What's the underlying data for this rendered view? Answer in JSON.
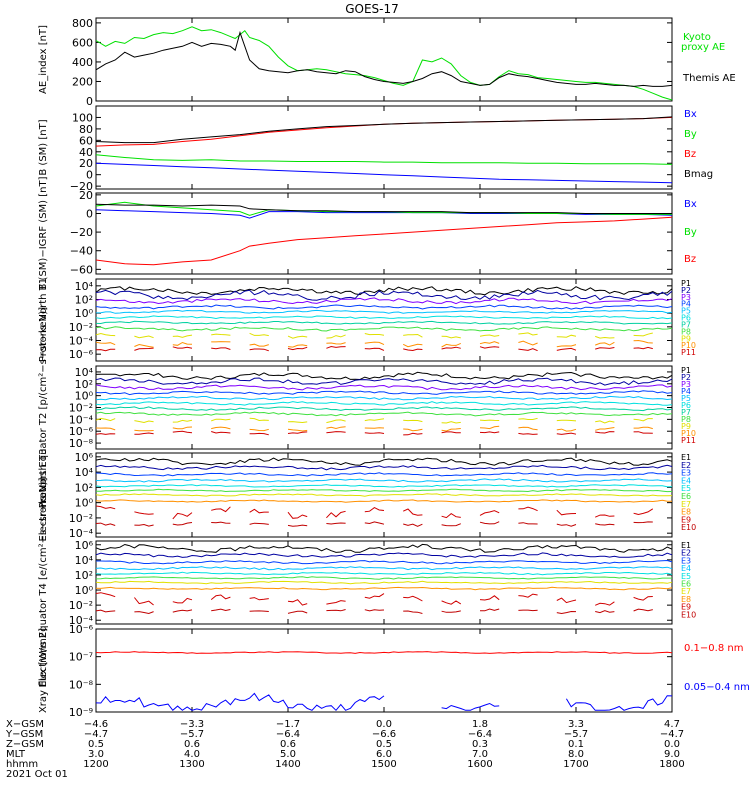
{
  "title": "GOES-17",
  "colors": {
    "black": "#000000",
    "green": "#00e000",
    "blue": "#0000ff",
    "red": "#ff0000",
    "navy": "#0000a0",
    "purple": "#8000ff",
    "dblue": "#0040ff",
    "cyan": "#00c0ff",
    "aqua": "#00e0e0",
    "teal": "#00d0a0",
    "lgreen": "#40e040",
    "yellow": "#e0e000",
    "olive": "#c0c000",
    "orange": "#ff9000",
    "dred": "#d00000",
    "maroon": "#c00000"
  },
  "chart_data": [
    {
      "type": "line",
      "id": "ae",
      "ylabel": "AE_index [nT]",
      "ylim": [
        0,
        850
      ],
      "yticks": [
        {
          "v": 0,
          "t": "0"
        },
        {
          "v": 200,
          "t": "200"
        },
        {
          "v": 400,
          "t": "400"
        },
        {
          "v": 600,
          "t": "600"
        },
        {
          "v": 800,
          "t": "800"
        }
      ],
      "x": [
        1200,
        1210,
        1220,
        1230,
        1240,
        1250,
        1260,
        1270,
        1280,
        1290,
        1300,
        1310,
        1320,
        1330,
        1340,
        1345,
        1350,
        1355,
        1360,
        1370,
        1380,
        1390,
        1400,
        1410,
        1420,
        1430,
        1440,
        1450,
        1460,
        1470,
        1480,
        1490,
        1500,
        1510,
        1520,
        1530,
        1540,
        1550,
        1560,
        1570,
        1580,
        1590,
        1600,
        1610,
        1620,
        1630,
        1640,
        1650,
        1660,
        1670,
        1680,
        1690,
        1700,
        1710,
        1720,
        1730,
        1740,
        1750,
        1760,
        1770,
        1780,
        1790,
        1800
      ],
      "series": [
        {
          "name": "Kyoto proxy AE",
          "color": "green",
          "values": [
            620,
            560,
            610,
            590,
            650,
            640,
            680,
            700,
            690,
            720,
            760,
            720,
            730,
            700,
            660,
            640,
            680,
            720,
            650,
            620,
            560,
            450,
            360,
            310,
            320,
            330,
            320,
            300,
            280,
            270,
            260,
            240,
            210,
            180,
            160,
            200,
            420,
            400,
            440,
            380,
            260,
            190,
            160,
            170,
            250,
            310,
            280,
            270,
            240,
            230,
            220,
            210,
            200,
            190,
            190,
            180,
            170,
            160,
            150,
            120,
            80,
            40,
            10
          ]
        },
        {
          "name": "Themis AE",
          "color": "black",
          "values": [
            320,
            380,
            420,
            500,
            450,
            470,
            490,
            520,
            540,
            560,
            600,
            560,
            590,
            580,
            560,
            520,
            700,
            560,
            420,
            330,
            310,
            300,
            290,
            310,
            320,
            300,
            290,
            280,
            310,
            300,
            250,
            220,
            200,
            190,
            180,
            200,
            230,
            280,
            300,
            260,
            200,
            180,
            160,
            170,
            240,
            280,
            260,
            250,
            230,
            210,
            190,
            180,
            170,
            170,
            180,
            170,
            160,
            160,
            150,
            160,
            150,
            150,
            160
          ]
        }
      ],
      "legend": [
        {
          "text": "Kyoto",
          "color": "green"
        },
        {
          "text": "proxy AE",
          "color": "green"
        },
        {
          "text": "Themis AE",
          "color": "black"
        }
      ]
    },
    {
      "type": "line",
      "id": "bsm",
      "ylabel": "B (SM) [nT]",
      "ylim": [
        -25,
        120
      ],
      "yticks": [
        {
          "v": -20,
          "t": "−20"
        },
        {
          "v": 0,
          "t": "0"
        },
        {
          "v": 20,
          "t": "20"
        },
        {
          "v": 40,
          "t": "40"
        },
        {
          "v": 60,
          "t": "60"
        },
        {
          "v": 80,
          "t": "80"
        },
        {
          "v": 100,
          "t": "100"
        }
      ],
      "x": [
        1200,
        1230,
        1260,
        1290,
        1320,
        1350,
        1380,
        1410,
        1440,
        1470,
        1500,
        1530,
        1560,
        1590,
        1620,
        1650,
        1680,
        1710,
        1740,
        1770,
        1800
      ],
      "series": [
        {
          "name": "Bx",
          "color": "blue",
          "values": [
            20,
            18,
            16,
            14,
            12,
            10,
            8,
            6,
            4,
            2,
            0,
            -2,
            -4,
            -6,
            -8,
            -9,
            -10,
            -11,
            -12,
            -13,
            -14
          ]
        },
        {
          "name": "By",
          "color": "green",
          "values": [
            35,
            30,
            26,
            25,
            26,
            24,
            24,
            23,
            23,
            23,
            22,
            22,
            21,
            21,
            21,
            20,
            20,
            19,
            19,
            19,
            18
          ]
        },
        {
          "name": "Bz",
          "color": "red",
          "values": [
            50,
            52,
            53,
            58,
            62,
            68,
            74,
            78,
            82,
            85,
            88,
            90,
            91,
            92,
            93,
            94,
            95,
            96,
            97,
            98,
            100
          ]
        },
        {
          "name": "Bmag",
          "color": "black",
          "values": [
            58,
            56,
            56,
            62,
            66,
            70,
            76,
            80,
            84,
            86,
            88,
            90,
            91,
            92,
            93,
            94,
            95,
            96,
            97,
            98,
            101
          ]
        }
      ],
      "legend": [
        {
          "text": "Bx",
          "color": "blue"
        },
        {
          "text": "By",
          "color": "green"
        },
        {
          "text": "Bz",
          "color": "red"
        },
        {
          "text": "Bmag",
          "color": "black"
        }
      ]
    },
    {
      "type": "line",
      "id": "bigrf",
      "ylabel": "B (SM)−IGRF (SM) [nT]",
      "ylim": [
        -65,
        22
      ],
      "yticks": [
        {
          "v": -60,
          "t": "−60"
        },
        {
          "v": -40,
          "t": "−40"
        },
        {
          "v": -20,
          "t": "−20"
        },
        {
          "v": 0,
          "t": "0"
        },
        {
          "v": 20,
          "t": "20"
        }
      ],
      "x": [
        1200,
        1230,
        1260,
        1290,
        1320,
        1350,
        1360,
        1380,
        1410,
        1440,
        1470,
        1500,
        1530,
        1560,
        1590,
        1620,
        1650,
        1680,
        1710,
        1740,
        1770,
        1800
      ],
      "series": [
        {
          "name": "Bx",
          "color": "blue",
          "values": [
            4,
            3,
            2,
            1,
            0,
            -2,
            -5,
            2,
            2,
            1,
            1,
            1,
            1,
            1,
            0,
            0,
            0,
            0,
            -1,
            -1,
            -1,
            -2
          ]
        },
        {
          "name": "By",
          "color": "green",
          "values": [
            8,
            12,
            8,
            6,
            4,
            2,
            -2,
            4,
            3,
            2,
            2,
            2,
            1,
            1,
            1,
            1,
            0,
            0,
            0,
            -1,
            -1,
            -1
          ]
        },
        {
          "name": "Bz",
          "color": "red",
          "values": [
            -50,
            -54,
            -55,
            -52,
            -50,
            -40,
            -35,
            -32,
            -28,
            -26,
            -24,
            -22,
            -20,
            -18,
            -16,
            -14,
            -12,
            -10,
            -9,
            -8,
            -6,
            -4
          ]
        },
        {
          "name": "",
          "color": "black",
          "values": [
            10,
            9,
            9,
            8,
            9,
            8,
            5,
            4,
            3,
            3,
            2,
            2,
            2,
            2,
            1,
            1,
            1,
            1,
            0,
            0,
            0,
            0
          ]
        }
      ],
      "legend": [
        {
          "text": "Bx",
          "color": "blue"
        },
        {
          "text": "By",
          "color": "green"
        },
        {
          "text": "Bz",
          "color": "red"
        }
      ]
    },
    {
      "type": "line",
      "id": "protn",
      "ylabel": "Protons North T1",
      "yscale": "log",
      "ylim": [
        -7,
        5
      ],
      "yticks": [
        {
          "v": 4,
          "t": "10⁴"
        },
        {
          "v": 2,
          "t": "10²"
        },
        {
          "v": 0,
          "t": "10⁰"
        },
        {
          "v": -2,
          "t": "10⁻²"
        },
        {
          "v": -4,
          "t": "10⁻⁴"
        },
        {
          "v": -6,
          "t": "10⁻⁶"
        }
      ],
      "series": [
        {
          "name": "P1",
          "color": "black",
          "level": 3.3,
          "amp": 0.6
        },
        {
          "name": "P2",
          "color": "navy",
          "level": 2.6,
          "amp": 0.7
        },
        {
          "name": "P3",
          "color": "purple",
          "level": 1.8,
          "amp": 0.4
        },
        {
          "name": "P4",
          "color": "dblue",
          "level": 0.9,
          "amp": 0.3
        },
        {
          "name": "P5",
          "color": "cyan",
          "level": 0.2,
          "amp": 0.2
        },
        {
          "name": "P6",
          "color": "aqua",
          "level": -0.6,
          "amp": 0.2
        },
        {
          "name": "P7",
          "color": "teal",
          "level": -1.4,
          "amp": 0.2
        },
        {
          "name": "P8",
          "color": "lgreen",
          "level": -2.3,
          "amp": 0.3
        },
        {
          "name": "P9",
          "color": "yellow",
          "level": -3.3,
          "amp": 0.4,
          "dashed": true
        },
        {
          "name": "P10",
          "color": "orange",
          "level": -4.5,
          "amp": 0.5,
          "dashed": true
        },
        {
          "name": "P11",
          "color": "dred",
          "level": -5.2,
          "amp": 0.3,
          "dashed": true
        }
      ]
    },
    {
      "type": "line",
      "id": "prote",
      "ylabel": "Protons Equator T2 [p/(cm²−s−sr−keV)]",
      "yscale": "log",
      "ylim": [
        -9,
        5
      ],
      "yticks": [
        {
          "v": 4,
          "t": "10⁴"
        },
        {
          "v": 2,
          "t": "10²"
        },
        {
          "v": 0,
          "t": "10⁰"
        },
        {
          "v": -2,
          "t": "10⁻²"
        },
        {
          "v": -4,
          "t": "10⁻⁴"
        },
        {
          "v": -6,
          "t": "10⁻⁶"
        },
        {
          "v": -8,
          "t": "10⁻⁸"
        }
      ],
      "series": [
        {
          "name": "P1",
          "color": "black",
          "level": 3.3,
          "amp": 0.6
        },
        {
          "name": "P2",
          "color": "navy",
          "level": 2.4,
          "amp": 0.6
        },
        {
          "name": "P3",
          "color": "purple",
          "level": 1.4,
          "amp": 0.4
        },
        {
          "name": "P4",
          "color": "dblue",
          "level": 0.5,
          "amp": 0.3
        },
        {
          "name": "P5",
          "color": "cyan",
          "level": -0.4,
          "amp": 0.3
        },
        {
          "name": "P6",
          "color": "aqua",
          "level": -1.3,
          "amp": 0.3
        },
        {
          "name": "P7",
          "color": "teal",
          "level": -2.2,
          "amp": 0.3
        },
        {
          "name": "P8",
          "color": "lgreen",
          "level": -3.1,
          "amp": 0.3
        },
        {
          "name": "P9",
          "color": "yellow",
          "level": -4.2,
          "amp": 0.4,
          "dashed": true
        },
        {
          "name": "P10",
          "color": "orange",
          "level": -5.6,
          "amp": 0.4,
          "dashed": true
        },
        {
          "name": "P11",
          "color": "dred",
          "level": -6.3,
          "amp": 0.3,
          "dashed": true
        }
      ]
    },
    {
      "type": "line",
      "id": "elecn",
      "ylabel": "Electrons North T3",
      "yscale": "log",
      "ylim": [
        -4.5,
        6.5
      ],
      "yticks": [
        {
          "v": 6,
          "t": "10⁶"
        },
        {
          "v": 4,
          "t": "10⁴"
        },
        {
          "v": 2,
          "t": "10²"
        },
        {
          "v": 0,
          "t": "10⁰"
        },
        {
          "v": -2,
          "t": "10⁻²"
        },
        {
          "v": -4,
          "t": "10⁻⁴"
        }
      ],
      "series": [
        {
          "name": "E1",
          "color": "black",
          "level": 5.4,
          "amp": 0.5
        },
        {
          "name": "E2",
          "color": "navy",
          "level": 4.6,
          "amp": 0.3
        },
        {
          "name": "E3",
          "color": "dblue",
          "level": 3.7,
          "amp": 0.2
        },
        {
          "name": "E4",
          "color": "cyan",
          "level": 2.9,
          "amp": 0.2
        },
        {
          "name": "E5",
          "color": "aqua",
          "level": 2.2,
          "amp": 0.15
        },
        {
          "name": "E6",
          "color": "lgreen",
          "level": 1.6,
          "amp": 0.15
        },
        {
          "name": "E7",
          "color": "yellow",
          "level": 1.0,
          "amp": 0.15
        },
        {
          "name": "E8",
          "color": "orange",
          "level": 0.2,
          "amp": 0.15
        },
        {
          "name": "E9",
          "color": "dred",
          "level": -1.3,
          "amp": 0.8,
          "dashed": true
        },
        {
          "name": "E10",
          "color": "maroon",
          "level": -2.8,
          "amp": 0.3,
          "dashed": true
        }
      ]
    },
    {
      "type": "line",
      "id": "elece",
      "ylabel": "Electrons Equator T4 [e/(cm²−s−sr−keV)]",
      "yscale": "log",
      "ylim": [
        -4.5,
        6.5
      ],
      "yticks": [
        {
          "v": 6,
          "t": "10⁶"
        },
        {
          "v": 4,
          "t": "10⁴"
        },
        {
          "v": 2,
          "t": "10²"
        },
        {
          "v": 0,
          "t": "10⁰"
        },
        {
          "v": -2,
          "t": "10⁻²"
        },
        {
          "v": -4,
          "t": "10⁻⁴"
        }
      ],
      "series": [
        {
          "name": "E1",
          "color": "black",
          "level": 5.5,
          "amp": 0.5
        },
        {
          "name": "E2",
          "color": "navy",
          "level": 4.6,
          "amp": 0.3
        },
        {
          "name": "E3",
          "color": "dblue",
          "level": 3.7,
          "amp": 0.2
        },
        {
          "name": "E4",
          "color": "cyan",
          "level": 2.9,
          "amp": 0.2
        },
        {
          "name": "E5",
          "color": "aqua",
          "level": 2.2,
          "amp": 0.15
        },
        {
          "name": "E6",
          "color": "lgreen",
          "level": 1.6,
          "amp": 0.15
        },
        {
          "name": "E7",
          "color": "yellow",
          "level": 1.0,
          "amp": 0.15
        },
        {
          "name": "E8",
          "color": "orange",
          "level": 0.2,
          "amp": 0.15
        },
        {
          "name": "E9",
          "color": "dred",
          "level": -1.2,
          "amp": 0.8,
          "dashed": true
        },
        {
          "name": "E10",
          "color": "maroon",
          "level": -2.8,
          "amp": 0.3,
          "dashed": true
        }
      ]
    },
    {
      "type": "line",
      "id": "xray",
      "ylabel": "Xray flux [W/m2]",
      "yscale": "log",
      "ylim": [
        -9,
        -6
      ],
      "yticks": [
        {
          "v": -6,
          "t": "10⁻⁶"
        },
        {
          "v": -7,
          "t": "10⁻⁷"
        },
        {
          "v": -8,
          "t": "10⁻⁸"
        },
        {
          "v": -9,
          "t": "10⁻⁹"
        }
      ],
      "series": [
        {
          "name": "0.1−0.8 nm",
          "color": "red",
          "level": -6.85,
          "amp": 0.03
        },
        {
          "name": "0.05−0.4 nm",
          "color": "blue",
          "level": -8.7,
          "amp": 0.35,
          "gaps": [
            [
              1500,
              1560
            ],
            [
              1620,
              1690
            ]
          ]
        }
      ]
    }
  ],
  "xaxis": {
    "range": [
      1200,
      1800
    ],
    "rows": [
      {
        "label": "X−GSM",
        "values": [
          "−4.6",
          "−3.3",
          "−1.7",
          "0.0",
          "1.8",
          "3.3",
          "4.7"
        ]
      },
      {
        "label": "Y−GSM",
        "values": [
          "−4.7",
          "−5.7",
          "−6.4",
          "−6.6",
          "−6.4",
          "−5.7",
          "−4.7"
        ]
      },
      {
        "label": "Z−GSM",
        "values": [
          "0.5",
          "0.6",
          "0.6",
          "0.5",
          "0.3",
          "0.1",
          "0.0"
        ]
      },
      {
        "label": "MLT",
        "values": [
          "3.0",
          "4.0",
          "5.0",
          "6.0",
          "7.0",
          "8.0",
          "9.0"
        ]
      },
      {
        "label": "hhmm",
        "values": [
          "1200",
          "1300",
          "1400",
          "1500",
          "1600",
          "1700",
          "1800"
        ]
      }
    ],
    "date": "2021 Oct 01"
  }
}
